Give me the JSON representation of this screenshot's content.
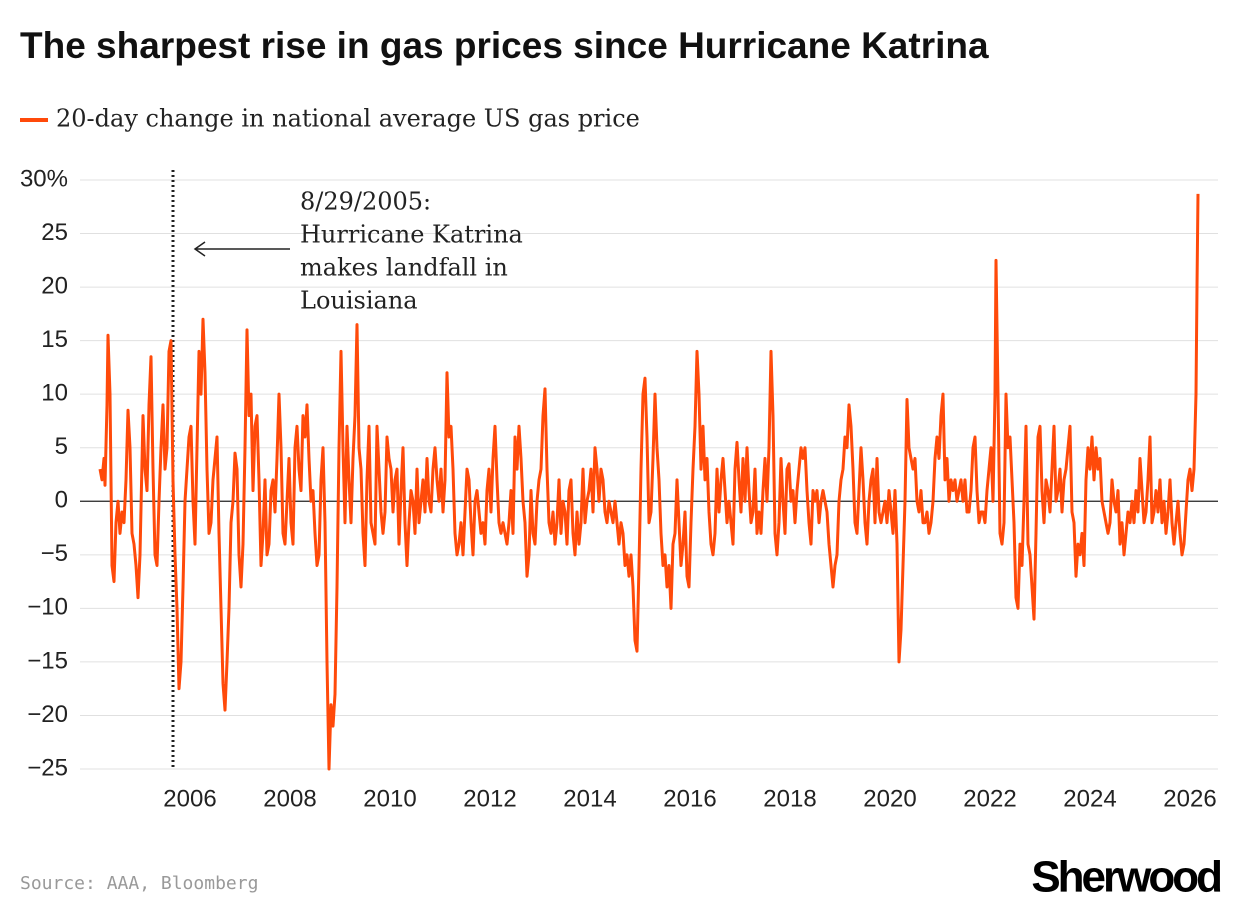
{
  "chart_data": {
    "type": "line",
    "title": "The sharpest rise in gas prices since Hurricane Katrina",
    "source": "Source: AAA, Bloomberg",
    "brand": "Sherwood",
    "annotation": {
      "x": 2005.66,
      "lines": [
        "8/29/2005:",
        "Hurricane Katrina",
        "makes landfall in",
        "Louisiana"
      ]
    },
    "xlim": [
      2003.8,
      2026.56
    ],
    "xticks": [
      2006,
      2008,
      2010,
      2012,
      2014,
      2016,
      2018,
      2020,
      2022,
      2024,
      2026
    ],
    "ylim": [
      -25,
      30
    ],
    "yticks": [
      {
        "value": -25,
        "label": "−25"
      },
      {
        "value": -20,
        "label": "−20"
      },
      {
        "value": -15,
        "label": "−15"
      },
      {
        "value": -10,
        "label": "−10"
      },
      {
        "value": -5,
        "label": "−5"
      },
      0,
      5,
      10,
      15,
      20,
      25,
      {
        "value": 30,
        "label": "30%"
      }
    ],
    "grid": true,
    "x": [
      2004.2,
      2004.24,
      2004.28,
      2004.3,
      2004.34,
      2004.36,
      2004.4,
      2004.44,
      2004.48,
      2004.52,
      2004.56,
      2004.6,
      2004.64,
      2004.68,
      2004.72,
      2004.76,
      2004.8,
      2004.84,
      2004.88,
      2004.92,
      2004.96,
      2005.0,
      2005.06,
      2005.1,
      2005.14,
      2005.18,
      2005.22,
      2005.26,
      2005.3,
      2005.34,
      2005.38,
      2005.42,
      2005.46,
      2005.5,
      2005.54,
      2005.58,
      2005.62,
      2005.66,
      2005.7,
      2005.74,
      2005.78,
      2005.82,
      2005.86,
      2005.9,
      2005.94,
      2005.98,
      2006.02,
      2006.06,
      2006.1,
      2006.14,
      2006.18,
      2006.22,
      2006.26,
      2006.3,
      2006.34,
      2006.38,
      2006.42,
      2006.46,
      2006.5,
      2006.54,
      2006.58,
      2006.62,
      2006.66,
      2006.7,
      2006.74,
      2006.78,
      2006.82,
      2006.86,
      2006.9,
      2006.94,
      2006.98,
      2007.02,
      2007.06,
      2007.1,
      2007.14,
      2007.18,
      2007.22,
      2007.26,
      2007.3,
      2007.34,
      2007.38,
      2007.42,
      2007.46,
      2007.5,
      2007.54,
      2007.58,
      2007.62,
      2007.66,
      2007.7,
      2007.74,
      2007.78,
      2007.82,
      2007.86,
      2007.9,
      2007.94,
      2007.98,
      2008.02,
      2008.06,
      2008.1,
      2008.14,
      2008.18,
      2008.22,
      2008.26,
      2008.3,
      2008.34,
      2008.38,
      2008.42,
      2008.46,
      2008.5,
      2008.54,
      2008.58,
      2008.62,
      2008.66,
      2008.7,
      2008.74,
      2008.78,
      2008.82,
      2008.86,
      2008.9,
      2008.94,
      2008.98,
      2009.02,
      2009.06,
      2009.1,
      2009.14,
      2009.18,
      2009.22,
      2009.26,
      2009.3,
      2009.34,
      2009.38,
      2009.42,
      2009.46,
      2009.5,
      2009.54,
      2009.58,
      2009.62,
      2009.66,
      2009.7,
      2009.74,
      2009.78,
      2009.82,
      2009.86,
      2009.9,
      2009.94,
      2009.98,
      2010.02,
      2010.06,
      2010.1,
      2010.14,
      2010.18,
      2010.22,
      2010.26,
      2010.3,
      2010.34,
      2010.38,
      2010.42,
      2010.46,
      2010.5,
      2010.54,
      2010.58,
      2010.62,
      2010.66,
      2010.7,
      2010.74,
      2010.78,
      2010.82,
      2010.86,
      2010.9,
      2010.94,
      2010.98,
      2011.02,
      2011.06,
      2011.1,
      2011.14,
      2011.18,
      2011.22,
      2011.26,
      2011.3,
      2011.34,
      2011.38,
      2011.42,
      2011.46,
      2011.5,
      2011.54,
      2011.58,
      2011.62,
      2011.66,
      2011.7,
      2011.74,
      2011.78,
      2011.82,
      2011.86,
      2011.9,
      2011.94,
      2011.98,
      2012.02,
      2012.06,
      2012.1,
      2012.14,
      2012.18,
      2012.22,
      2012.26,
      2012.3,
      2012.34,
      2012.38,
      2012.42,
      2012.46,
      2012.5,
      2012.54,
      2012.58,
      2012.62,
      2012.66,
      2012.7,
      2012.74,
      2012.78,
      2012.82,
      2012.86,
      2012.9,
      2012.94,
      2012.98,
      2013.02,
      2013.06,
      2013.1,
      2013.14,
      2013.18,
      2013.22,
      2013.26,
      2013.3,
      2013.34,
      2013.38,
      2013.42,
      2013.46,
      2013.5,
      2013.54,
      2013.58,
      2013.62,
      2013.66,
      2013.7,
      2013.74,
      2013.78,
      2013.82,
      2013.86,
      2013.9,
      2013.94,
      2013.98,
      2014.02,
      2014.06,
      2014.1,
      2014.14,
      2014.18,
      2014.22,
      2014.26,
      2014.3,
      2014.34,
      2014.38,
      2014.42,
      2014.46,
      2014.5,
      2014.54,
      2014.58,
      2014.62,
      2014.66,
      2014.7,
      2014.74,
      2014.78,
      2014.82,
      2014.86,
      2014.9,
      2014.94,
      2014.98,
      2015.02,
      2015.06,
      2015.1,
      2015.14,
      2015.18,
      2015.22,
      2015.26,
      2015.3,
      2015.34,
      2015.38,
      2015.42,
      2015.46,
      2015.5,
      2015.54,
      2015.58,
      2015.62,
      2015.66,
      2015.7,
      2015.74,
      2015.78,
      2015.82,
      2015.86,
      2015.9,
      2015.94,
      2015.98,
      2016.02,
      2016.06,
      2016.1,
      2016.14,
      2016.18,
      2016.22,
      2016.26,
      2016.3,
      2016.34,
      2016.38,
      2016.42,
      2016.46,
      2016.5,
      2016.54,
      2016.58,
      2016.62,
      2016.66,
      2016.7,
      2016.74,
      2016.78,
      2016.82,
      2016.86,
      2016.9,
      2016.94,
      2016.98,
      2017.02,
      2017.06,
      2017.1,
      2017.14,
      2017.18,
      2017.22,
      2017.26,
      2017.3,
      2017.34,
      2017.38,
      2017.42,
      2017.46,
      2017.5,
      2017.54,
      2017.58,
      2017.62,
      2017.66,
      2017.7,
      2017.74,
      2017.78,
      2017.82,
      2017.86,
      2017.9,
      2017.94,
      2017.98,
      2018.02,
      2018.06,
      2018.1,
      2018.14,
      2018.18,
      2018.22,
      2018.26,
      2018.3,
      2018.34,
      2018.38,
      2018.42,
      2018.46,
      2018.5,
      2018.54,
      2018.58,
      2018.62,
      2018.66,
      2018.7,
      2018.74,
      2018.78,
      2018.82,
      2018.86,
      2018.9,
      2018.94,
      2018.98,
      2019.02,
      2019.06,
      2019.1,
      2019.14,
      2019.18,
      2019.22,
      2019.26,
      2019.3,
      2019.34,
      2019.38,
      2019.42,
      2019.46,
      2019.5,
      2019.54,
      2019.58,
      2019.62,
      2019.66,
      2019.7,
      2019.74,
      2019.78,
      2019.82,
      2019.86,
      2019.9,
      2019.94,
      2019.98,
      2020.02,
      2020.06,
      2020.1,
      2020.14,
      2020.18,
      2020.22,
      2020.26,
      2020.3,
      2020.34,
      2020.38,
      2020.42,
      2020.46,
      2020.5,
      2020.54,
      2020.58,
      2020.62,
      2020.66,
      2020.7,
      2020.74,
      2020.78,
      2020.82,
      2020.86,
      2020.9,
      2020.94,
      2020.98,
      2021.02,
      2021.06,
      2021.1,
      2021.14,
      2021.18,
      2021.22,
      2021.26,
      2021.3,
      2021.34,
      2021.38,
      2021.42,
      2021.46,
      2021.5,
      2021.54,
      2021.58,
      2021.62,
      2021.66,
      2021.7,
      2021.74,
      2021.78,
      2021.82,
      2021.86,
      2021.9,
      2021.94,
      2021.98,
      2022.02,
      2022.06,
      2022.1,
      2022.12,
      2022.16,
      2022.2,
      2022.24,
      2022.28,
      2022.32,
      2022.36,
      2022.4,
      2022.44,
      2022.48,
      2022.52,
      2022.56,
      2022.6,
      2022.64,
      2022.68,
      2022.72,
      2022.76,
      2022.8,
      2022.84,
      2022.88,
      2022.92,
      2022.96,
      2023.0,
      2023.04,
      2023.08,
      2023.12,
      2023.16,
      2023.2,
      2023.24,
      2023.28,
      2023.32,
      2023.36,
      2023.4,
      2023.44,
      2023.48,
      2023.52,
      2023.56,
      2023.6,
      2023.64,
      2023.68,
      2023.72,
      2023.76,
      2023.8,
      2023.84,
      2023.88,
      2023.92,
      2023.96,
      2024.0,
      2024.04,
      2024.08,
      2024.12,
      2024.16,
      2024.2,
      2024.24,
      2024.28,
      2024.32,
      2024.36,
      2024.4,
      2024.44,
      2024.48,
      2024.52,
      2024.56,
      2024.6,
      2024.64,
      2024.68,
      2024.72,
      2024.76,
      2024.8,
      2024.84,
      2024.88,
      2024.92,
      2024.96,
      2025.0,
      2025.04,
      2025.08,
      2025.12,
      2025.16,
      2025.2,
      2025.24,
      2025.28,
      2025.32,
      2025.36,
      2025.4,
      2025.44,
      2025.48,
      2025.52,
      2025.56,
      2025.6,
      2025.64,
      2025.68,
      2025.72,
      2025.76,
      2025.8,
      2025.84,
      2025.88,
      2025.92,
      2025.96,
      2026.0,
      2026.04,
      2026.08,
      2026.12,
      2026.14,
      2026.16
    ],
    "series": [
      {
        "name": "20-day change in national average US gas price",
        "color": "#ff4a0a",
        "values": [
          3,
          2,
          4,
          1.5,
          9,
          15.5,
          10,
          -6,
          -7.5,
          -2,
          0,
          -3,
          -1,
          -2,
          2,
          8.5,
          5,
          -3,
          -4,
          -6,
          -9,
          -5,
          8,
          3,
          1,
          9,
          13.5,
          3,
          -5,
          -6,
          0,
          5,
          9,
          3,
          5,
          14,
          15,
          2,
          -5,
          -10,
          -17.5,
          -15,
          -8,
          0,
          3,
          6,
          7,
          0,
          -4,
          5,
          14,
          10,
          17,
          12,
          3,
          -3,
          -2,
          2,
          4,
          6,
          -3,
          -10,
          -17,
          -19.5,
          -15,
          -10,
          -2,
          0,
          4.5,
          3,
          -5,
          -8,
          -4,
          5,
          16,
          8,
          10,
          1,
          7,
          8,
          2,
          -6,
          -3,
          2,
          -5,
          -4,
          1,
          2,
          -1,
          4,
          10,
          5,
          -3,
          -4,
          0,
          4,
          -2,
          -4,
          5,
          7,
          3,
          1,
          8,
          6,
          9,
          4,
          0,
          1,
          -3,
          -6,
          -5,
          2,
          5,
          -2,
          -15,
          -25,
          -19,
          -21,
          -18,
          -8,
          5,
          14,
          5,
          -2,
          7,
          2,
          -2,
          4,
          8,
          16.5,
          5,
          3,
          -3,
          -6,
          2,
          7,
          -2,
          -3,
          -4,
          7,
          3,
          -1,
          -3,
          -1,
          6,
          4,
          3,
          -1,
          2,
          3,
          -4,
          1,
          5,
          -2,
          -6,
          -2,
          1,
          0,
          -3,
          3,
          -2,
          0,
          2,
          -1,
          4,
          0,
          -1,
          3,
          5,
          2,
          0,
          3,
          -1,
          2,
          12,
          6,
          7,
          3,
          -3,
          -5,
          -4,
          -2,
          -5,
          -1,
          3,
          2,
          -2,
          -5,
          0,
          1,
          -1,
          -3,
          -2,
          -4,
          1,
          3,
          -1,
          4,
          7,
          2,
          -2,
          -3,
          -2,
          -3,
          -4,
          -2,
          1,
          -3,
          6,
          3,
          7,
          4,
          0,
          -2,
          -7,
          -5,
          1,
          -3,
          -4,
          0,
          2,
          3,
          8,
          10.5,
          3,
          -2,
          -3,
          -1,
          -4,
          -2,
          2,
          -3,
          0,
          -1,
          -4,
          1,
          2,
          -3,
          -5,
          -1,
          -4,
          -2,
          3,
          -2,
          0,
          1,
          3,
          -1,
          5,
          3,
          0,
          3,
          2,
          -1,
          -2,
          0,
          -1,
          -2,
          0,
          -2,
          -4,
          -2,
          -3,
          -6,
          -5,
          -7,
          -5,
          -8,
          -13,
          -14,
          -6,
          3,
          10,
          11.5,
          6,
          -2,
          -1,
          4,
          10,
          5,
          2,
          -3,
          -6,
          -5,
          -8,
          -6,
          -10,
          -4,
          -3,
          2,
          -2,
          -6,
          -4,
          -1,
          -7,
          -8,
          -2,
          3,
          7,
          14,
          10,
          3,
          7,
          2,
          4,
          -1,
          -4,
          -5,
          -3,
          3,
          -1,
          2,
          4,
          1,
          -2,
          0,
          -2,
          -4,
          3,
          5.5,
          2,
          -1,
          4,
          0,
          5,
          1,
          -2,
          -1,
          3,
          -3,
          -1,
          -3,
          1,
          4,
          0,
          5,
          14,
          8,
          -3,
          -5,
          -2,
          4,
          0,
          -3,
          3,
          3.5,
          0,
          1,
          -2,
          1,
          3,
          5,
          4,
          5,
          1,
          -2,
          -4,
          1,
          0,
          1,
          -2,
          0,
          1,
          0,
          -1,
          -4,
          -6,
          -8,
          -6,
          -5,
          0,
          2,
          3,
          6,
          5,
          9,
          7,
          3,
          -2,
          -3,
          1,
          5,
          2,
          -2,
          -4,
          0,
          2,
          3,
          -2,
          4,
          -1,
          -2,
          -1,
          0,
          -2,
          1,
          -1,
          -3,
          1,
          -4,
          -15,
          -12,
          -6,
          0,
          9.5,
          5,
          4,
          3,
          4,
          0,
          -1,
          1,
          -2,
          -2,
          -1,
          -3,
          -2,
          0,
          4,
          6,
          4,
          8,
          10,
          2,
          4,
          0,
          2,
          1,
          2,
          0,
          1,
          2,
          0,
          2,
          -1,
          -1,
          1,
          5,
          6,
          1,
          -2,
          -1,
          -1,
          -2,
          1,
          3,
          5,
          0,
          10,
          22.5,
          10,
          -3,
          -4,
          -2,
          10,
          5,
          6,
          2,
          -2,
          -9,
          -10,
          -4,
          -6,
          0,
          7,
          -4,
          -5,
          -8,
          -11,
          -3,
          6,
          7,
          1,
          -2,
          2,
          1,
          -1,
          3,
          7,
          0,
          1,
          3,
          -1,
          2,
          3,
          5,
          7,
          -1,
          -2,
          -7,
          -4,
          -5,
          -3,
          -6,
          2,
          5,
          3,
          6,
          2,
          5,
          3,
          4,
          0,
          -1,
          -2,
          -3,
          -2,
          2,
          0,
          -1,
          1,
          -4,
          -2,
          -5,
          -3,
          -1,
          -2,
          0,
          -2,
          1,
          -1,
          4,
          1,
          -2,
          -1,
          2,
          6,
          -2,
          -1,
          1,
          -1,
          2,
          -2,
          0,
          -3,
          -1,
          2,
          -2,
          -4,
          -2,
          0,
          -3,
          -5,
          -4,
          -1,
          2,
          3,
          1,
          3,
          10,
          20,
          28.7
        ]
      }
    ]
  }
}
